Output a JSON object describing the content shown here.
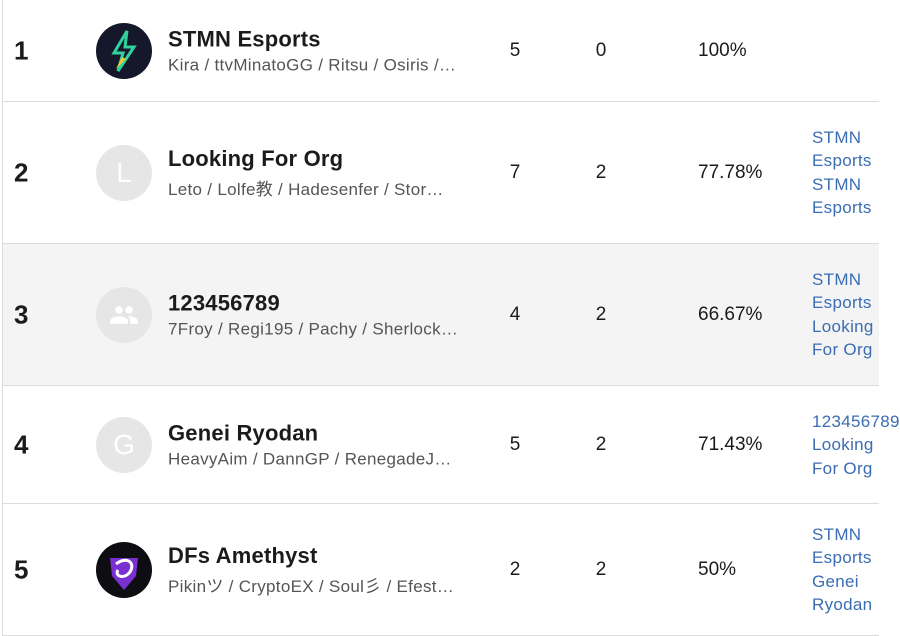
{
  "table": {
    "rows": [
      {
        "rank": "1",
        "name": "STMN Esports",
        "players": "Kira / ttvMinatoGG / Ritsu / Osiris /…",
        "wins": "5",
        "losses": "0",
        "percent": "100%",
        "beaten": []
      },
      {
        "rank": "2",
        "avatar": "L",
        "name": "Looking For Org",
        "players": "Leto / Lolfe教 / Hadesenfer / Stor…",
        "wins": "7",
        "losses": "2",
        "percent": "77.78%",
        "beaten": [
          "STMN Esports",
          "STMN Esports"
        ]
      },
      {
        "rank": "3",
        "name": "123456789",
        "players": "7Froy / Regi195 / Pachy / Sherlock…",
        "wins": "4",
        "losses": "2",
        "percent": "66.67%",
        "beaten": [
          "STMN Esports",
          "Looking For Org"
        ]
      },
      {
        "rank": "4",
        "avatar": "G",
        "name": "Genei Ryodan",
        "players": "HeavyAim / DannGP / RenegadeJ…",
        "wins": "5",
        "losses": "2",
        "percent": "71.43%",
        "beaten": [
          "123456789",
          "Looking For Org"
        ]
      },
      {
        "rank": "5",
        "name": "DFs Amethyst",
        "players": "Pikinツ / CryptoEX / Soul彡 / Efest…",
        "wins": "2",
        "losses": "2",
        "percent": "50%",
        "beaten": [
          "STMN Esports",
          "Genei Ryodan"
        ]
      }
    ]
  }
}
